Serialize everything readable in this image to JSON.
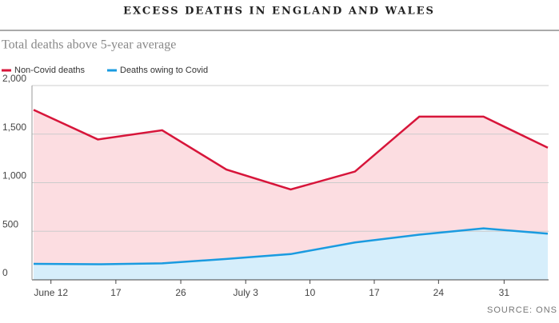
{
  "chart_data": {
    "type": "area",
    "title": "EXCESS DEATHS IN ENGLAND AND WALES",
    "subtitle": "Total deaths above 5-year average",
    "source": "SOURCE: ONS",
    "x": [
      0,
      1,
      2,
      3,
      4,
      5,
      6,
      7,
      8
    ],
    "series": [
      {
        "name": "Non-Covid deaths",
        "color": "#d7153a",
        "fill": "#fcdde1",
        "values": [
          1750,
          1445,
          1540,
          1135,
          930,
          1115,
          1680,
          1680,
          1360
        ]
      },
      {
        "name": "Deaths owing to Covid",
        "color": "#1a9be0",
        "fill": "#d6eefb",
        "values": [
          165,
          160,
          170,
          215,
          265,
          385,
          465,
          530,
          475
        ]
      }
    ],
    "xlim": [
      0,
      8
    ],
    "xticks": [
      {
        "value": 0.27,
        "label": "June 12"
      },
      {
        "value": 1.28,
        "label": "17"
      },
      {
        "value": 2.29,
        "label": "26"
      },
      {
        "value": 3.3,
        "label": "July 3"
      },
      {
        "value": 4.3,
        "label": "10"
      },
      {
        "value": 5.3,
        "label": "17"
      },
      {
        "value": 6.3,
        "label": "24"
      },
      {
        "value": 7.32,
        "label": "31"
      }
    ],
    "ylim": [
      0,
      2000
    ],
    "yticks": [
      0,
      500,
      {
        "value": 1000,
        "label": "1,000"
      },
      {
        "value": 1500,
        "label": "1,500"
      },
      {
        "value": 2000,
        "label": "2,000"
      }
    ],
    "grid": true
  }
}
